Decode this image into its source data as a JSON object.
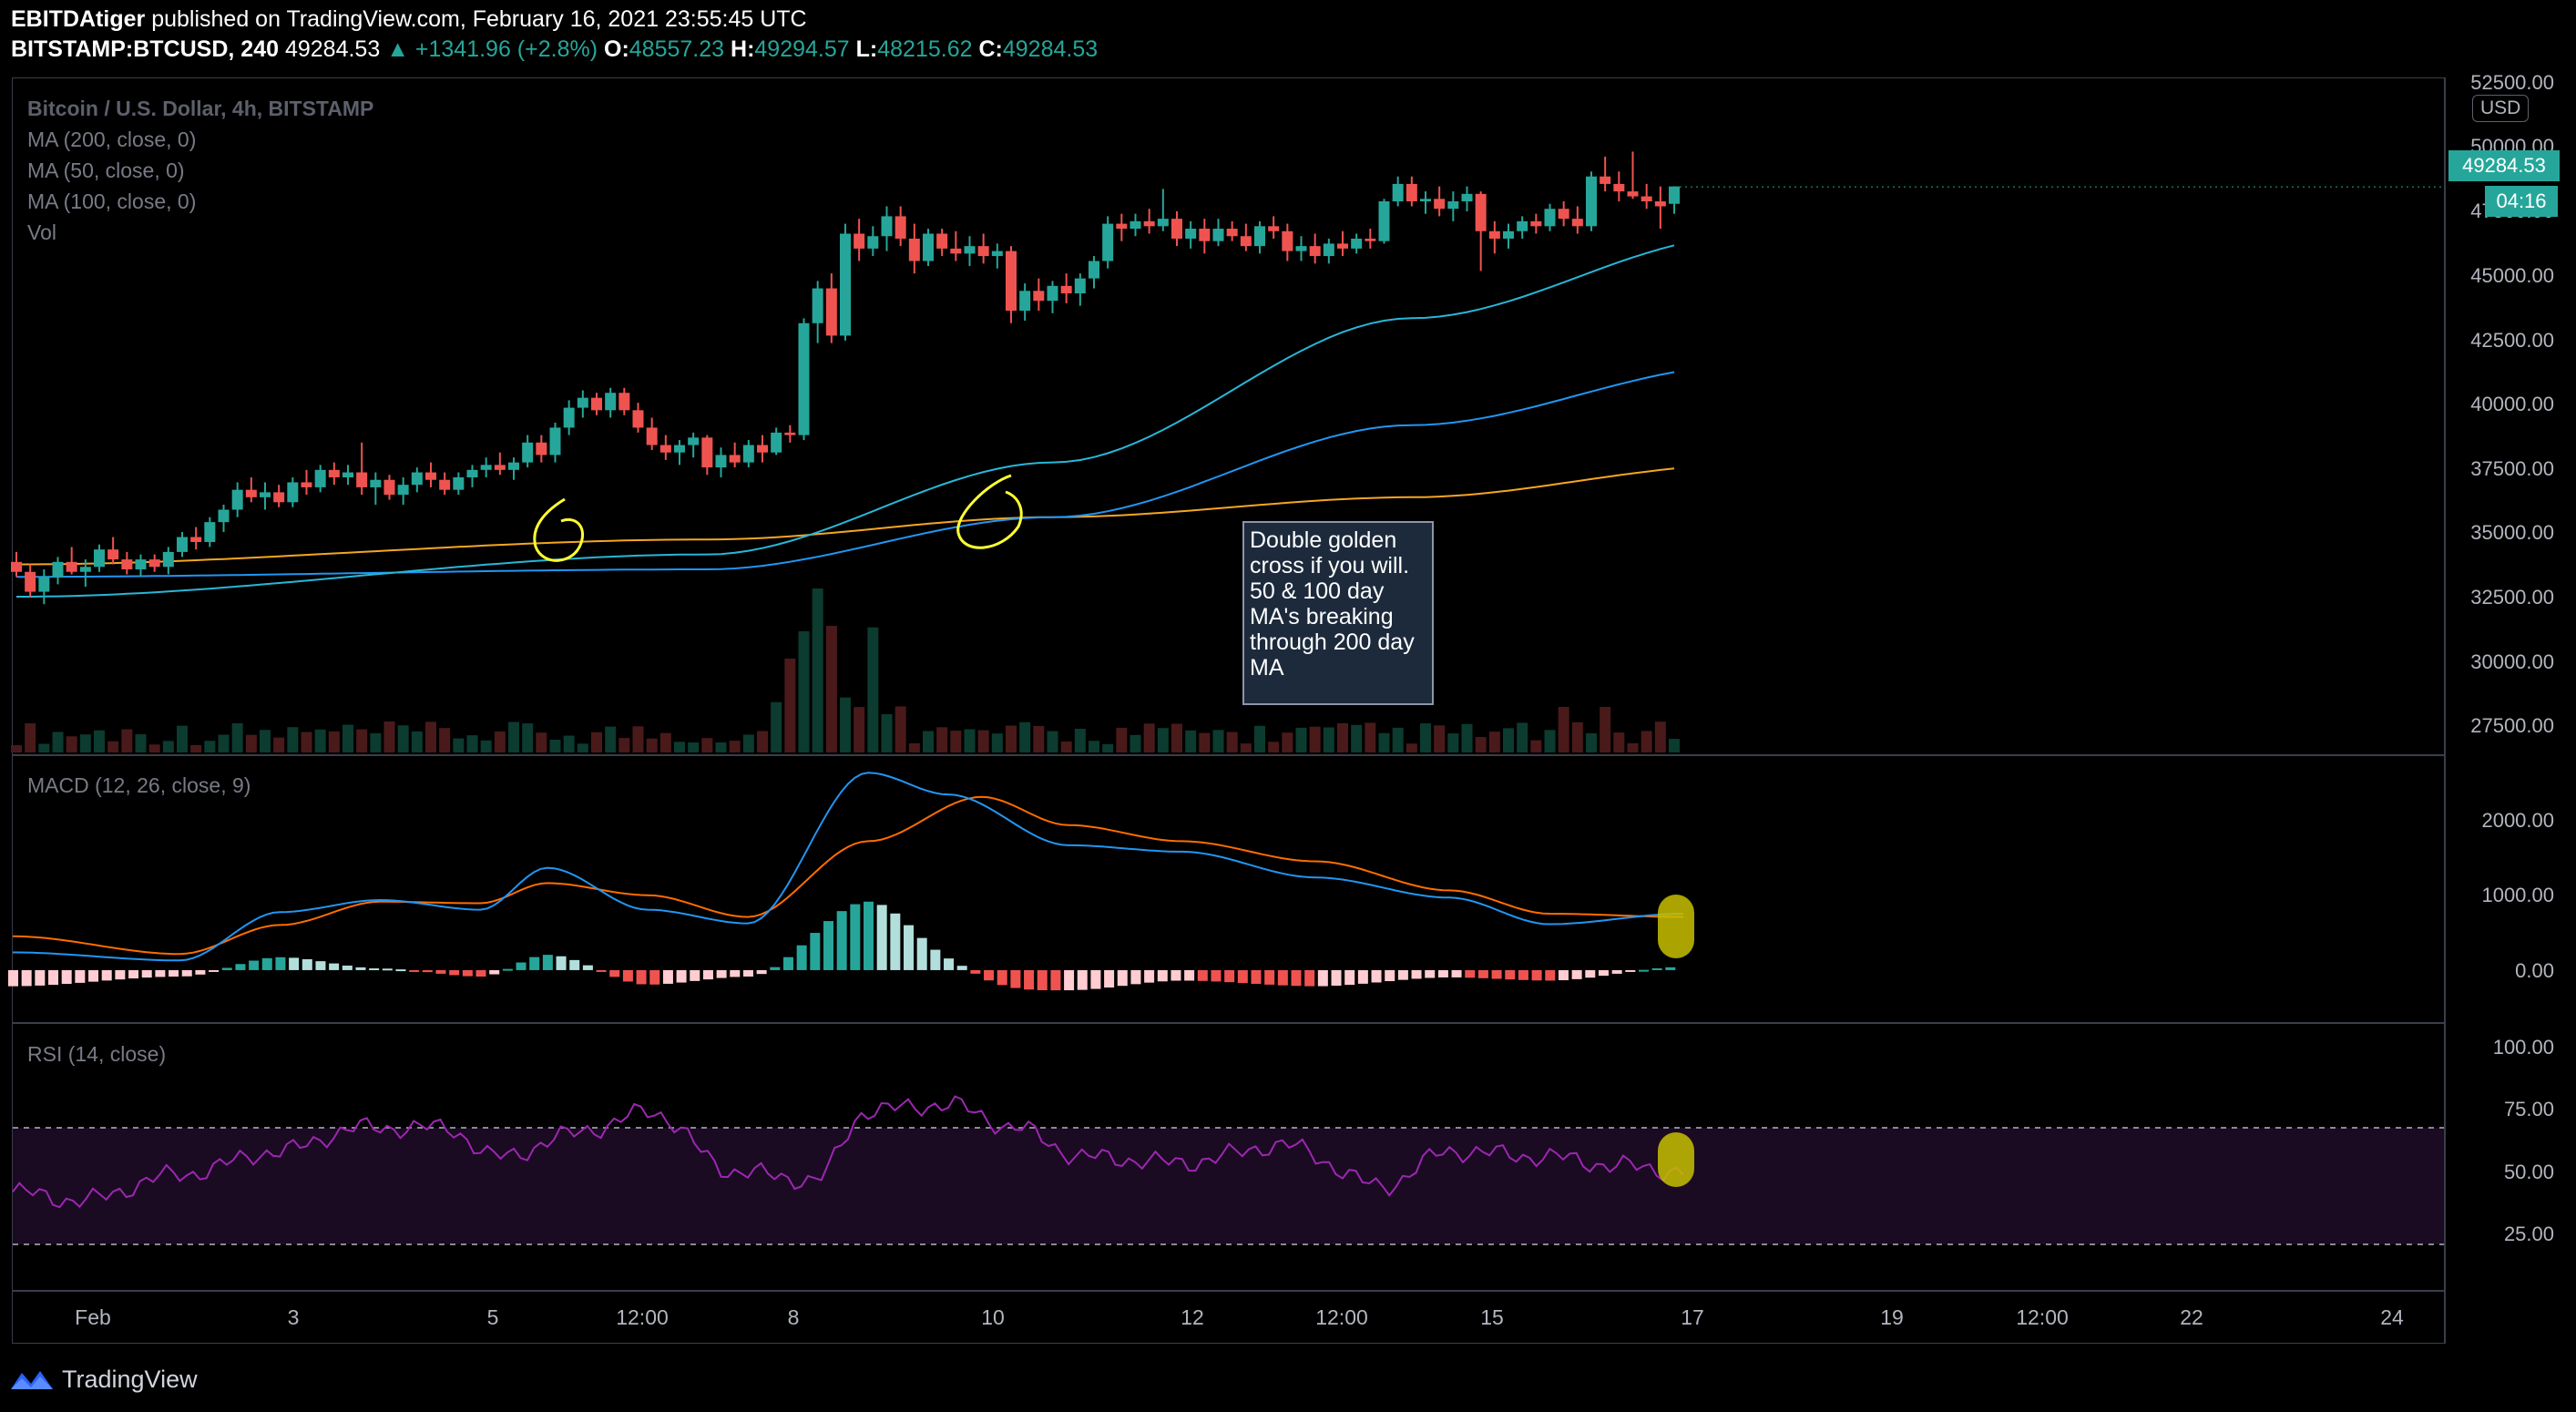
{
  "header": {
    "publisher": "EBITDAtiger",
    "published_text": "published on TradingView.com, February 16, 2021 23:55:45 UTC",
    "symbol": "BITSTAMP:BTCUSD, 240",
    "last": "49284.53",
    "change": "▲ +1341.96 (+2.8%)",
    "open_label": "O:",
    "open": "48557.23",
    "high_label": "H:",
    "high": "49294.57",
    "low_label": "L:",
    "low": "48215.62",
    "close_label": "C:",
    "close": "49284.53"
  },
  "main_pane": {
    "legend": [
      "Bitcoin / U.S. Dollar, 4h, BITSTAMP",
      "MA (200, close, 0)",
      "MA (50, close, 0)",
      "MA (100, close, 0)",
      "Vol"
    ],
    "y_ticks": [
      "52500.00",
      "50000.00",
      "47500.00",
      "45000.00",
      "42500.00",
      "40000.00",
      "37500.00",
      "35000.00",
      "32500.00",
      "30000.00",
      "27500.00"
    ],
    "currency": "USD",
    "price_label": "49284.53",
    "countdown": "04:16",
    "annotation": "Double golden cross if you will. 50 & 100 day MA's breaking through 200 day MA"
  },
  "macd_pane": {
    "legend": "MACD (12, 26, close, 9)",
    "y_ticks": [
      "2000.00",
      "1000.00",
      "0.00"
    ]
  },
  "rsi_pane": {
    "legend": "RSI (14, close)",
    "y_ticks": [
      "100.00",
      "75.00",
      "50.00",
      "25.00"
    ]
  },
  "x_axis": {
    "ticks": [
      "Feb",
      "3",
      "5",
      "12:00",
      "8",
      "10",
      "12",
      "12:00",
      "15",
      "17",
      "19",
      "12:00",
      "22",
      "24"
    ]
  },
  "footer": {
    "brand": "TradingView"
  },
  "colors": {
    "up": "#26a69a",
    "down": "#ef5350",
    "ma200": "#f5a623",
    "ma50": "#29b6d8",
    "ma100": "#2196f3",
    "macd": "#2196f3",
    "signal": "#ff6d00",
    "rsi": "#9c27b0",
    "highlight": "#c8c000"
  },
  "chart_data": [
    {
      "type": "candlestick",
      "title": "Bitcoin / U.S. Dollar, 4h, BITSTAMP",
      "ylim": [
        26500,
        53500
      ],
      "x_range": [
        "Feb 1",
        "Feb 24"
      ],
      "candles": [
        [
          34200,
          34600,
          33600,
          33800
        ],
        [
          33800,
          34100,
          32800,
          33000
        ],
        [
          33000,
          33900,
          32500,
          33600
        ],
        [
          33600,
          34400,
          33300,
          34200
        ],
        [
          34200,
          34800,
          33700,
          33800
        ],
        [
          33800,
          34300,
          33200,
          34000
        ],
        [
          34000,
          34900,
          33800,
          34700
        ],
        [
          34700,
          35200,
          34100,
          34300
        ],
        [
          34300,
          34600,
          33700,
          33900
        ],
        [
          33900,
          34500,
          33600,
          34300
        ],
        [
          34300,
          34500,
          33800,
          34000
        ],
        [
          34000,
          34800,
          33700,
          34600
        ],
        [
          34600,
          35400,
          34400,
          35200
        ],
        [
          35200,
          35600,
          34700,
          35000
        ],
        [
          35000,
          36000,
          34800,
          35800
        ],
        [
          35800,
          36500,
          35400,
          36300
        ],
        [
          36300,
          37400,
          36000,
          37100
        ],
        [
          37100,
          37600,
          36600,
          36800
        ],
        [
          36800,
          37400,
          36300,
          37000
        ],
        [
          37000,
          37300,
          36400,
          36600
        ],
        [
          36600,
          37600,
          36400,
          37400
        ],
        [
          37400,
          37900,
          36900,
          37200
        ],
        [
          37200,
          38100,
          37000,
          37900
        ],
        [
          37900,
          38200,
          37300,
          37600
        ],
        [
          37600,
          38100,
          37300,
          37800
        ],
        [
          37800,
          39000,
          36900,
          37200
        ],
        [
          37200,
          37800,
          36500,
          37500
        ],
        [
          37500,
          37700,
          36700,
          36900
        ],
        [
          36900,
          37600,
          36500,
          37300
        ],
        [
          37300,
          38000,
          37000,
          37800
        ],
        [
          37800,
          38200,
          37200,
          37500
        ],
        [
          37500,
          37800,
          36900,
          37100
        ],
        [
          37100,
          37800,
          36900,
          37600
        ],
        [
          37600,
          38100,
          37200,
          37900
        ],
        [
          37900,
          38400,
          37600,
          38100
        ],
        [
          38100,
          38600,
          37700,
          37900
        ],
        [
          37900,
          38400,
          37500,
          38200
        ],
        [
          38200,
          39300,
          38000,
          39000
        ],
        [
          39000,
          39300,
          38200,
          38500
        ],
        [
          38500,
          39800,
          38200,
          39600
        ],
        [
          39600,
          40700,
          39300,
          40400
        ],
        [
          40400,
          41100,
          40000,
          40800
        ],
        [
          40800,
          41000,
          40100,
          40300
        ],
        [
          40300,
          41200,
          40000,
          41000
        ],
        [
          41000,
          41200,
          40100,
          40300
        ],
        [
          40300,
          40600,
          39400,
          39600
        ],
        [
          39600,
          40000,
          38700,
          38900
        ],
        [
          38900,
          39300,
          38300,
          38600
        ],
        [
          38600,
          39100,
          38100,
          38900
        ],
        [
          38900,
          39400,
          38400,
          39200
        ],
        [
          39200,
          39300,
          37700,
          38000
        ],
        [
          38000,
          38800,
          37600,
          38500
        ],
        [
          38500,
          39000,
          38000,
          38200
        ],
        [
          38200,
          39100,
          38000,
          38900
        ],
        [
          38900,
          39300,
          38200,
          38600
        ],
        [
          38600,
          39600,
          38500,
          39400
        ],
        [
          39400,
          39700,
          39000,
          39300
        ],
        [
          39300,
          44000,
          39100,
          43800
        ],
        [
          43800,
          45500,
          43000,
          45200
        ],
        [
          45200,
          45800,
          43000,
          43300
        ],
        [
          43300,
          47800,
          43100,
          47400
        ],
        [
          47400,
          48000,
          46300,
          46800
        ],
        [
          46800,
          47700,
          46500,
          47300
        ],
        [
          47300,
          48500,
          46700,
          48100
        ],
        [
          48100,
          48500,
          46900,
          47200
        ],
        [
          47200,
          47800,
          45800,
          46300
        ],
        [
          46300,
          47600,
          46100,
          47400
        ],
        [
          47400,
          47600,
          46500,
          46800
        ],
        [
          46800,
          47500,
          46300,
          46600
        ],
        [
          46600,
          47300,
          46100,
          46900
        ],
        [
          46900,
          47400,
          46200,
          46500
        ],
        [
          46500,
          47000,
          46000,
          46700
        ],
        [
          46700,
          46900,
          43800,
          44300
        ],
        [
          44300,
          45400,
          43900,
          45100
        ],
        [
          45100,
          45600,
          44300,
          44700
        ],
        [
          44700,
          45500,
          44200,
          45300
        ],
        [
          45300,
          45800,
          44600,
          45000
        ],
        [
          45000,
          45800,
          44500,
          45600
        ],
        [
          45600,
          46500,
          45200,
          46300
        ],
        [
          46300,
          48100,
          46000,
          47800
        ],
        [
          47800,
          48200,
          47100,
          47600
        ],
        [
          47600,
          48200,
          47300,
          47900
        ],
        [
          47900,
          48400,
          47400,
          47700
        ],
        [
          47700,
          49200,
          47500,
          48000
        ],
        [
          48000,
          48300,
          46900,
          47200
        ],
        [
          47200,
          47900,
          46800,
          47600
        ],
        [
          47600,
          48000,
          46600,
          47100
        ],
        [
          47100,
          48000,
          46900,
          47600
        ],
        [
          47600,
          47900,
          47100,
          47300
        ],
        [
          47300,
          47800,
          46700,
          46900
        ],
        [
          46900,
          47900,
          46600,
          47700
        ],
        [
          47700,
          48100,
          47200,
          47500
        ],
        [
          47500,
          47800,
          46300,
          46700
        ],
        [
          46700,
          47300,
          46300,
          46900
        ],
        [
          46900,
          47400,
          46200,
          46500
        ],
        [
          46500,
          47200,
          46200,
          47000
        ],
        [
          47000,
          47500,
          46500,
          46800
        ],
        [
          46800,
          47400,
          46600,
          47200
        ],
        [
          47200,
          47600,
          46800,
          47100
        ],
        [
          47100,
          48800,
          47000,
          48700
        ],
        [
          48700,
          49700,
          48500,
          49400
        ],
        [
          49400,
          49700,
          48500,
          48700
        ],
        [
          48700,
          49100,
          48200,
          48800
        ],
        [
          48800,
          49300,
          48100,
          48400
        ],
        [
          48400,
          49100,
          47900,
          48700
        ],
        [
          48700,
          49300,
          48300,
          49000
        ],
        [
          49000,
          49100,
          45900,
          47500
        ],
        [
          47500,
          47900,
          46600,
          47200
        ],
        [
          47200,
          47800,
          46800,
          47500
        ],
        [
          47500,
          48100,
          47200,
          47900
        ],
        [
          47900,
          48200,
          47400,
          47700
        ],
        [
          47700,
          48600,
          47500,
          48400
        ],
        [
          48400,
          48700,
          47700,
          48000
        ],
        [
          48000,
          48500,
          47400,
          47700
        ],
        [
          47700,
          49900,
          47500,
          49700
        ],
        [
          49700,
          50500,
          49100,
          49400
        ],
        [
          49400,
          49900,
          48700,
          49100
        ],
        [
          49100,
          50700,
          48800,
          48900
        ],
        [
          48900,
          49400,
          48400,
          48700
        ],
        [
          48700,
          49300,
          47600,
          48500
        ],
        [
          48600,
          49300,
          48200,
          49300
        ]
      ],
      "ma50_endpoints": [
        [
          0,
          32800
        ],
        [
          50,
          34500
        ],
        [
          75,
          38200
        ],
        [
          101,
          44000
        ],
        [
          125,
          47300
        ]
      ],
      "ma100_endpoints": [
        [
          0,
          33600
        ],
        [
          50,
          33900
        ],
        [
          75,
          36000
        ],
        [
          101,
          39700
        ],
        [
          125,
          42100
        ]
      ],
      "ma200_endpoints": [
        [
          0,
          34100
        ],
        [
          50,
          35100
        ],
        [
          75,
          36000
        ],
        [
          101,
          36800
        ],
        [
          125,
          38100
        ]
      ]
    },
    {
      "type": "macd",
      "title": "MACD (12, 26, close, 9)",
      "ylim": [
        -600,
        2600
      ],
      "macd_keypoints": [
        [
          0,
          220
        ],
        [
          25,
          120
        ],
        [
          40,
          720
        ],
        [
          55,
          870
        ],
        [
          70,
          750
        ],
        [
          80,
          1270
        ],
        [
          95,
          750
        ],
        [
          110,
          580
        ],
        [
          128,
          2450
        ],
        [
          140,
          2180
        ],
        [
          158,
          1550
        ],
        [
          175,
          1470
        ],
        [
          195,
          1150
        ],
        [
          215,
          900
        ],
        [
          230,
          570
        ],
        [
          250,
          700
        ]
      ],
      "signal_keypoints": [
        [
          0,
          420
        ],
        [
          25,
          200
        ],
        [
          40,
          560
        ],
        [
          55,
          850
        ],
        [
          70,
          830
        ],
        [
          80,
          1080
        ],
        [
          95,
          930
        ],
        [
          110,
          660
        ],
        [
          128,
          1600
        ],
        [
          145,
          2150
        ],
        [
          158,
          1800
        ],
        [
          175,
          1600
        ],
        [
          195,
          1350
        ],
        [
          215,
          990
        ],
        [
          230,
          700
        ],
        [
          250,
          660
        ]
      ],
      "histogram_range": [
        -400,
        760
      ]
    },
    {
      "type": "line",
      "title": "RSI (14, close)",
      "ylim": [
        15,
        105
      ],
      "bands": [
        30,
        70
      ],
      "rsi_keypoints": [
        [
          0,
          48
        ],
        [
          10,
          45
        ],
        [
          25,
          54
        ],
        [
          40,
          62
        ],
        [
          52,
          70
        ],
        [
          65,
          70
        ],
        [
          72,
          60
        ],
        [
          88,
          70
        ],
        [
          95,
          76
        ],
        [
          108,
          55
        ],
        [
          120,
          52
        ],
        [
          128,
          76
        ],
        [
          140,
          78
        ],
        [
          150,
          70
        ],
        [
          160,
          60
        ],
        [
          175,
          58
        ],
        [
          190,
          64
        ],
        [
          205,
          50
        ],
        [
          215,
          62
        ],
        [
          230,
          60
        ],
        [
          240,
          57
        ],
        [
          250,
          55
        ]
      ]
    }
  ]
}
